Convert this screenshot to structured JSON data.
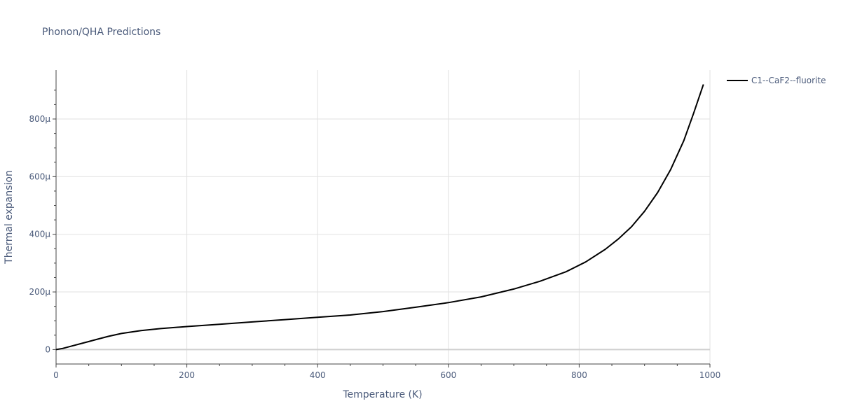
{
  "chart_data": {
    "type": "line",
    "title": "Phonon/QHA Predictions",
    "xlabel": "Temperature (K)",
    "ylabel": "Thermal expansion",
    "xlim": [
      0,
      1000
    ],
    "ylim": [
      -50,
      970
    ],
    "x_ticks": [
      0,
      200,
      400,
      600,
      800,
      1000
    ],
    "x_tick_labels": [
      "0",
      "200",
      "400",
      "600",
      "800",
      "1000"
    ],
    "y_ticks": [
      0,
      200,
      400,
      600,
      800
    ],
    "y_tick_labels": [
      "0",
      "200μ",
      "400μ",
      "600μ",
      "800μ"
    ],
    "grid": true,
    "legend": "top-right",
    "series": [
      {
        "name": "C1--CaF2--fluorite",
        "color": "#000000",
        "x": [
          0,
          10,
          20,
          40,
          60,
          80,
          100,
          130,
          160,
          200,
          250,
          300,
          350,
          400,
          450,
          500,
          550,
          600,
          650,
          700,
          740,
          780,
          810,
          840,
          860,
          880,
          900,
          920,
          940,
          960,
          975,
          990
        ],
        "y": [
          0,
          4,
          10,
          22,
          34,
          46,
          56,
          66,
          73,
          80,
          88,
          96,
          104,
          112,
          120,
          132,
          147,
          163,
          183,
          210,
          237,
          270,
          304,
          348,
          384,
          426,
          480,
          545,
          625,
          725,
          820,
          920
        ]
      }
    ]
  }
}
